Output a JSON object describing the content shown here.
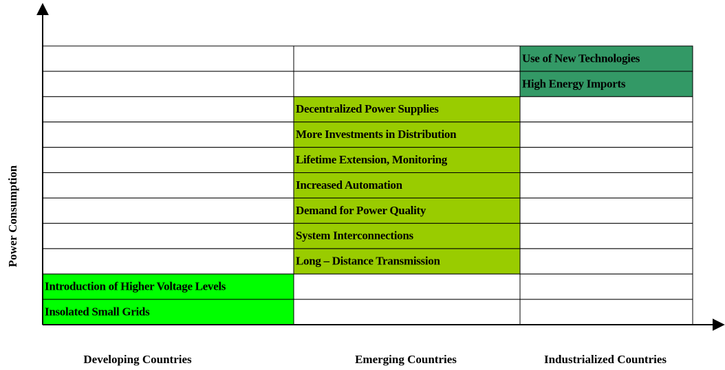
{
  "axis": {
    "y_label": "Power Consumption"
  },
  "columns": [
    {
      "label": "Developing Countries",
      "color": "#00ff00"
    },
    {
      "label": "Emerging Countries",
      "color": "#99cc00"
    },
    {
      "label": "Industrialized Countries",
      "color": "#339966"
    }
  ],
  "table": {
    "rows": [
      [
        null,
        null,
        "Use of New Technologies"
      ],
      [
        null,
        null,
        "High Energy Imports"
      ],
      [
        null,
        "Decentralized Power Supplies",
        null
      ],
      [
        null,
        "More Investments in Distribution",
        null
      ],
      [
        null,
        "Lifetime Extension, Monitoring",
        null
      ],
      [
        null,
        "Increased Automation",
        null
      ],
      [
        null,
        "Demand for Power Quality",
        null
      ],
      [
        null,
        "System Interconnections",
        null
      ],
      [
        null,
        "Long – Distance Transmission",
        null
      ],
      [
        "Introduction of Higher Voltage Levels",
        null,
        null
      ],
      [
        "Insolated Small Grids",
        null,
        null
      ]
    ]
  }
}
